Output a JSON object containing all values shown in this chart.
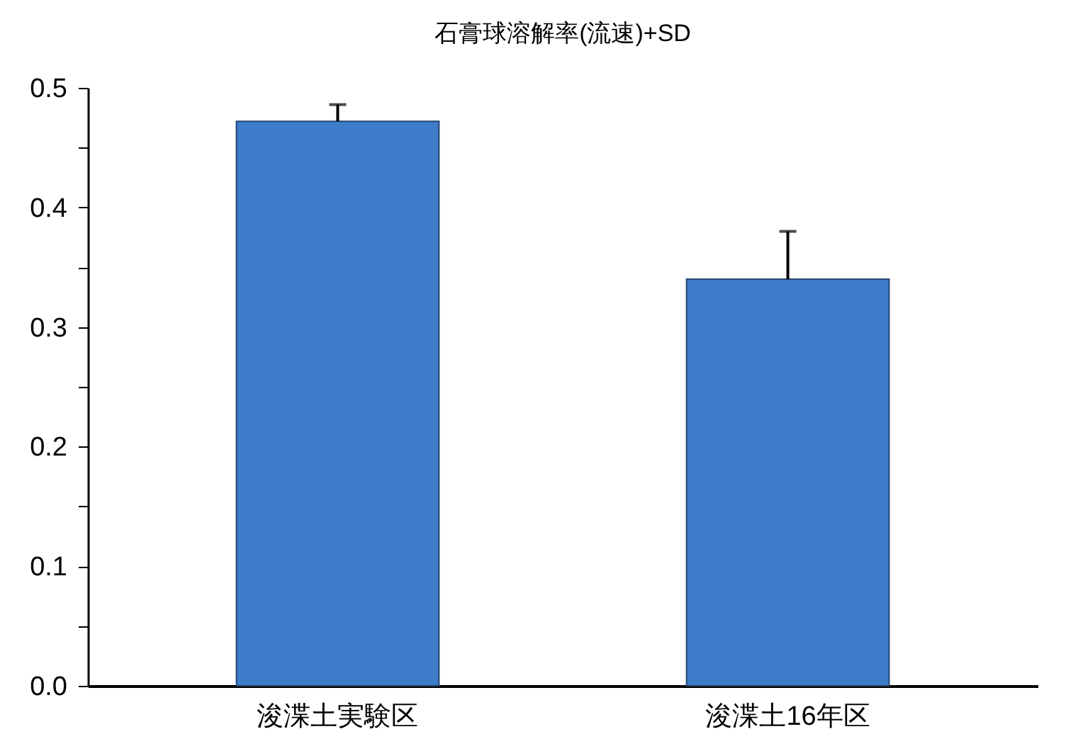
{
  "chart_data": {
    "type": "bar",
    "title": "石膏球溶解率(流速)+SD",
    "categories": [
      "浚渫土実験区",
      "浚渫土16年区"
    ],
    "values": [
      0.472,
      0.34
    ],
    "errors": [
      0.014,
      0.04
    ],
    "color": "#3d7cc9",
    "ylim": [
      0,
      0.5
    ],
    "yticks": [
      {
        "value": 0,
        "label": "0.0"
      },
      {
        "value": 0.05,
        "label": null
      },
      0.1,
      {
        "value": 0.15,
        "label": null
      },
      0.2,
      {
        "value": 0.25,
        "label": null
      },
      0.3,
      {
        "value": 0.35,
        "label": null
      },
      0.4,
      {
        "value": 0.45,
        "label": null
      },
      0.5
    ],
    "grid": false
  }
}
